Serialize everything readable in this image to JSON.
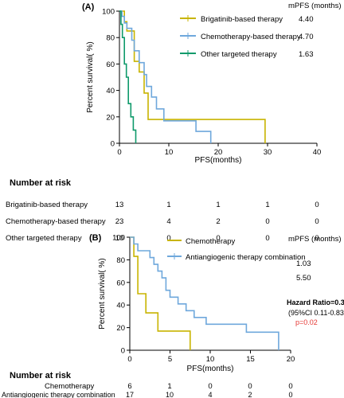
{
  "colors": {
    "brigatinib": "#c8b400",
    "chemo_blue": "#6fa8dc",
    "other_green": "#0f9a6b",
    "red_p": "#e53935",
    "axis": "#000000"
  },
  "chart_data": [
    {
      "type": "line",
      "panel_label": "(A)",
      "title": "",
      "xlabel": "PFS(months)",
      "ylabel": "Percent survival( %)",
      "xlim": [
        0,
        40
      ],
      "ylim": [
        0,
        100
      ],
      "xticks": [
        "0",
        "10",
        "20",
        "30",
        "40"
      ],
      "yticks": [
        "0",
        "20",
        "40",
        "60",
        "80",
        "100"
      ],
      "legend_header": "mPFS (months)",
      "series": [
        {
          "name": "Brigatinib-based therapy",
          "mpfs": "4.40",
          "color_key": "brigatinib",
          "points": [
            [
              0,
              100
            ],
            [
              1,
              100
            ],
            [
              1,
              92
            ],
            [
              1.5,
              92
            ],
            [
              1.5,
              85
            ],
            [
              3,
              85
            ],
            [
              3,
              62
            ],
            [
              4,
              62
            ],
            [
              4,
              54
            ],
            [
              5,
              54
            ],
            [
              5,
              38
            ],
            [
              5.8,
              38
            ],
            [
              5.8,
              18
            ],
            [
              29.5,
              18
            ],
            [
              29.5,
              0
            ]
          ]
        },
        {
          "name": "Chemotherapy-based therapy",
          "mpfs": "4.70",
          "color_key": "chemo_blue",
          "points": [
            [
              0,
              100
            ],
            [
              0.5,
              100
            ],
            [
              0.5,
              96
            ],
            [
              1,
              96
            ],
            [
              1,
              91
            ],
            [
              1.5,
              91
            ],
            [
              1.5,
              87
            ],
            [
              2.5,
              87
            ],
            [
              2.5,
              78
            ],
            [
              3,
              78
            ],
            [
              3,
              70
            ],
            [
              4,
              70
            ],
            [
              4,
              61
            ],
            [
              5,
              61
            ],
            [
              5,
              52
            ],
            [
              5.5,
              52
            ],
            [
              5.5,
              43
            ],
            [
              6.5,
              43
            ],
            [
              6.5,
              35
            ],
            [
              7.5,
              35
            ],
            [
              7.5,
              26
            ],
            [
              9,
              26
            ],
            [
              9,
              17
            ],
            [
              15.5,
              17
            ],
            [
              15.5,
              9
            ],
            [
              18.5,
              9
            ],
            [
              18.5,
              0
            ]
          ]
        },
        {
          "name": "Other targeted therapy",
          "mpfs": "1.63",
          "color_key": "other_green",
          "points": [
            [
              0,
              100
            ],
            [
              0.3,
              100
            ],
            [
              0.3,
              90
            ],
            [
              0.6,
              90
            ],
            [
              0.6,
              80
            ],
            [
              1,
              80
            ],
            [
              1,
              60
            ],
            [
              1.4,
              60
            ],
            [
              1.4,
              50
            ],
            [
              1.8,
              50
            ],
            [
              1.8,
              30
            ],
            [
              2.3,
              30
            ],
            [
              2.3,
              20
            ],
            [
              2.8,
              20
            ],
            [
              2.8,
              10
            ],
            [
              3.3,
              10
            ],
            [
              3.3,
              0
            ]
          ]
        }
      ],
      "risk_table": {
        "heading": "Number at risk",
        "rows": [
          {
            "label": "Brigatinib-based therapy",
            "values": [
              "13",
              "1",
              "1",
              "1",
              "0"
            ]
          },
          {
            "label": "Chemotherapy-based therapy",
            "values": [
              "23",
              "4",
              "2",
              "0",
              "0"
            ]
          },
          {
            "label": "Other targeted therapy",
            "values": [
              "10",
              "0",
              "0",
              "0",
              "0"
            ]
          }
        ]
      }
    },
    {
      "type": "line",
      "panel_label": "(B)",
      "title": "",
      "xlabel": "PFS(months)",
      "ylabel": "Percent survival( %)",
      "xlim": [
        0,
        20
      ],
      "ylim": [
        0,
        100
      ],
      "xticks": [
        "0",
        "5",
        "10",
        "15",
        "20"
      ],
      "yticks": [
        "0",
        "20",
        "40",
        "60",
        "80",
        "100"
      ],
      "legend_header": "mPFS (months)",
      "series": [
        {
          "name": "Chemotherapy",
          "mpfs": "1.03",
          "color_key": "brigatinib",
          "points": [
            [
              0,
              100
            ],
            [
              0.5,
              100
            ],
            [
              0.5,
              83
            ],
            [
              1,
              83
            ],
            [
              1,
              50
            ],
            [
              2,
              50
            ],
            [
              2,
              33
            ],
            [
              3.5,
              33
            ],
            [
              3.5,
              17
            ],
            [
              7.5,
              17
            ],
            [
              7.5,
              0
            ]
          ]
        },
        {
          "name": "Antiangiogenic therapy combination",
          "mpfs": "5.50",
          "color_key": "chemo_blue",
          "points": [
            [
              0,
              100
            ],
            [
              0.5,
              100
            ],
            [
              0.5,
              94
            ],
            [
              1,
              94
            ],
            [
              1,
              88
            ],
            [
              2.5,
              88
            ],
            [
              2.5,
              82
            ],
            [
              3,
              82
            ],
            [
              3,
              76
            ],
            [
              3.5,
              76
            ],
            [
              3.5,
              70
            ],
            [
              4,
              70
            ],
            [
              4,
              64
            ],
            [
              4.5,
              64
            ],
            [
              4.5,
              53
            ],
            [
              5,
              53
            ],
            [
              5,
              47
            ],
            [
              6,
              47
            ],
            [
              6,
              41
            ],
            [
              7,
              41
            ],
            [
              7,
              35
            ],
            [
              8,
              35
            ],
            [
              8,
              29
            ],
            [
              9.5,
              29
            ],
            [
              9.5,
              23
            ],
            [
              14.5,
              23
            ],
            [
              14.5,
              16
            ],
            [
              18.5,
              16
            ],
            [
              18.5,
              0
            ]
          ]
        }
      ],
      "stats": {
        "hr": "Hazard Ratio=0.30",
        "ci": "(95%CI 0.11-0.83)",
        "p": "p=0.02"
      },
      "risk_table": {
        "heading": "Number at risk",
        "rows": [
          {
            "label": "Chemotherapy",
            "values": [
              "6",
              "1",
              "0",
              "0",
              "0"
            ]
          },
          {
            "label": "Antiangiogenic therapy combination",
            "values": [
              "17",
              "10",
              "4",
              "2",
              "0"
            ]
          }
        ]
      }
    }
  ]
}
